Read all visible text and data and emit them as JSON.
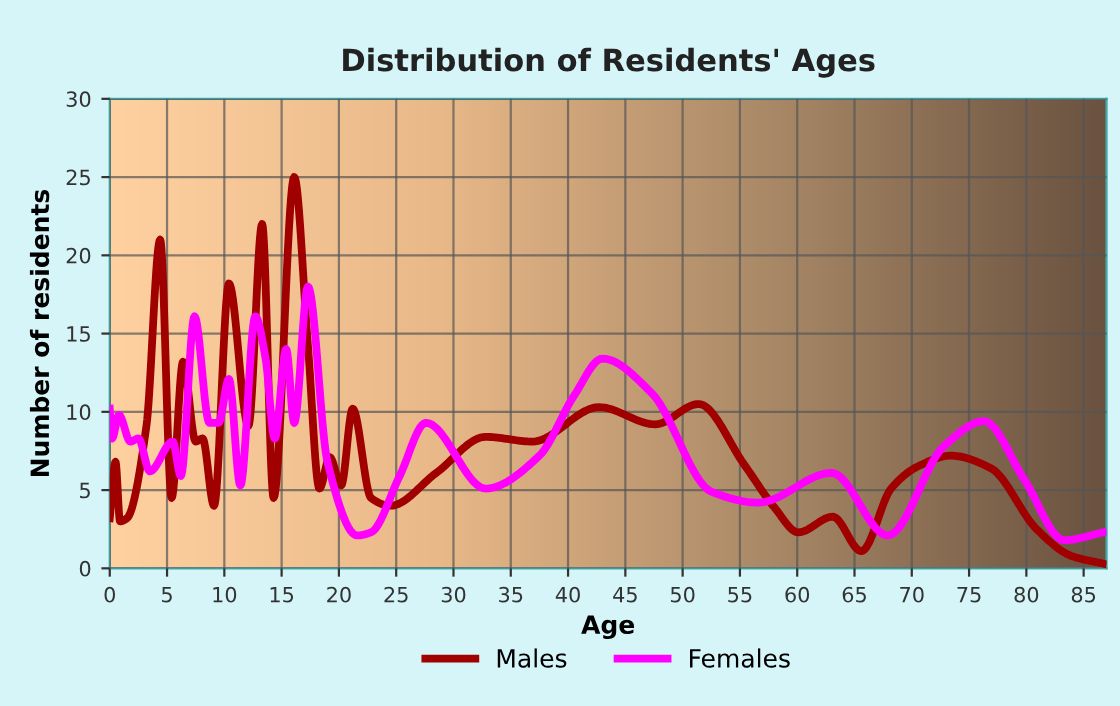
{
  "chart_data": {
    "type": "line",
    "title": "Distribution of Residents' Ages",
    "xlabel": "Age",
    "ylabel": "Number of residents",
    "xlim": [
      0,
      87
    ],
    "ylim": [
      0,
      30
    ],
    "xticks": [
      0,
      5,
      10,
      15,
      20,
      25,
      30,
      35,
      40,
      45,
      50,
      55,
      60,
      65,
      70,
      75,
      80,
      85
    ],
    "yticks": [
      0,
      5,
      10,
      15,
      20,
      25,
      30
    ],
    "grid": true,
    "legend": "bottom",
    "line_style": "solid",
    "series": [
      {
        "name": "Males",
        "color": "#a00000",
        "x": [
          0,
          0.5,
          0.9,
          1.5,
          3.2,
          4.4,
          5.4,
          6.4,
          7.5,
          8.1,
          9.1,
          10.4,
          12.1,
          13.3,
          14.3,
          16.1,
          17.3,
          18.3,
          19.2,
          20.2,
          21.2,
          22.8,
          24.5,
          28.5,
          32.8,
          36.9,
          42.7,
          47.6,
          51.4,
          55.4,
          58.0,
          60.1,
          63.1,
          65.6,
          68.2,
          70.5,
          73.4,
          76.9,
          80.9,
          83.9,
          86.7
        ],
        "values": [
          3.2,
          6.8,
          3.0,
          3.2,
          9.1,
          21,
          4.5,
          13.2,
          8.1,
          8.3,
          4.0,
          18.2,
          9.1,
          22,
          4.5,
          25,
          14.2,
          5.1,
          7.1,
          5.3,
          10.2,
          4.5,
          4.0,
          6.1,
          8.4,
          8.1,
          10.3,
          9.2,
          10.5,
          6.6,
          3.9,
          2.3,
          3.3,
          1.1,
          5.1,
          6.5,
          7.2,
          6.4,
          2.5,
          0.8,
          0.3
        ]
      },
      {
        "name": "Females",
        "color": "#ff00ff",
        "x": [
          0,
          0.2,
          0.8,
          1.8,
          2.5,
          3.5,
          5.5,
          6.2,
          7.4,
          8.7,
          9.5,
          10.4,
          11.4,
          12.7,
          13.6,
          14.4,
          15.4,
          16.1,
          17.3,
          19.0,
          21.6,
          22.8,
          25.3,
          27.6,
          32.8,
          37.5,
          40.5,
          43.0,
          47.3,
          52.5,
          56.6,
          63.0,
          67.9,
          72.8,
          76.3,
          79.8,
          83.3,
          86.7
        ],
        "values": [
          10.2,
          8.3,
          9.8,
          8.1,
          8.3,
          6.2,
          8.1,
          5.9,
          16.1,
          9.3,
          9.3,
          12.1,
          5.3,
          16.1,
          13.4,
          8.3,
          14.0,
          9.3,
          18,
          6.8,
          2.1,
          2.3,
          5.9,
          9.3,
          5.1,
          7.2,
          11.0,
          13.4,
          11.2,
          4.9,
          4.2,
          6.1,
          2.1,
          7.8,
          9.4,
          5.7,
          1.8,
          2.3
        ]
      }
    ]
  }
}
